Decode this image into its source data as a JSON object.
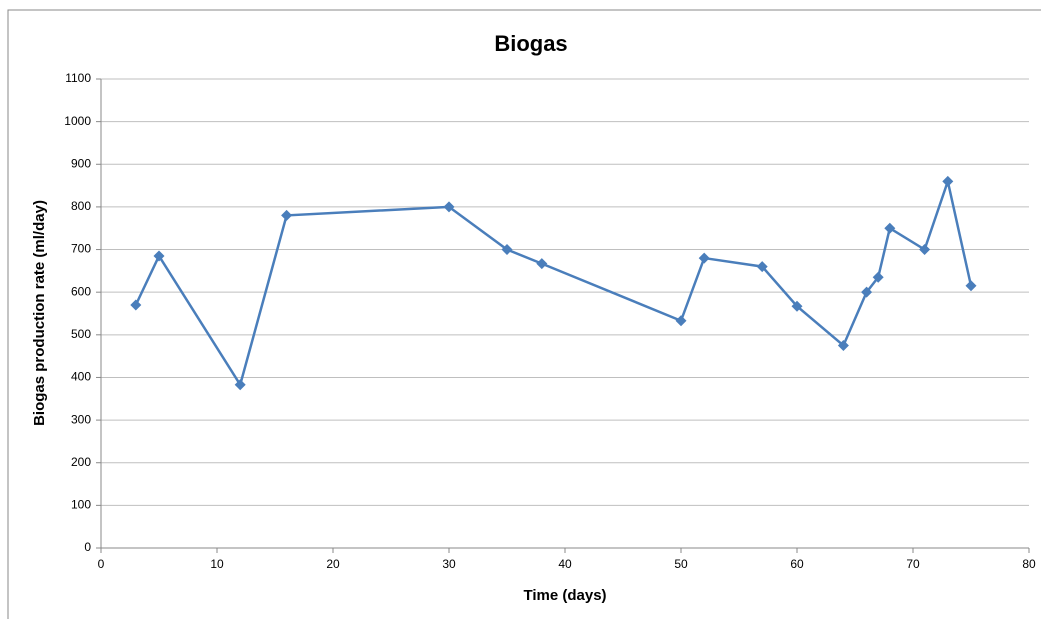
{
  "chart_data": {
    "type": "line",
    "title": "Biogas",
    "x_label": "Time (days)",
    "y_label": "Biogas production rate  (ml/day)",
    "series": [
      {
        "name": "Biogas",
        "color": "#4a7ebb",
        "x": [
          3,
          5,
          12,
          16,
          30,
          35,
          38,
          50,
          52,
          57,
          60,
          64,
          66,
          67,
          68,
          71,
          73,
          75
        ],
        "values": [
          570,
          685,
          383,
          780,
          800,
          700,
          667,
          533,
          680,
          660,
          567,
          475,
          600,
          635,
          750,
          700,
          860,
          615
        ]
      }
    ],
    "xlim": [
      0,
      80
    ],
    "xticks": [
      0,
      10,
      20,
      30,
      40,
      50,
      60,
      70,
      80
    ],
    "ylim": [
      0,
      1100
    ],
    "yticks": [
      0,
      100,
      200,
      300,
      400,
      500,
      600,
      700,
      800,
      900,
      1000,
      1100
    ],
    "grid": true
  }
}
